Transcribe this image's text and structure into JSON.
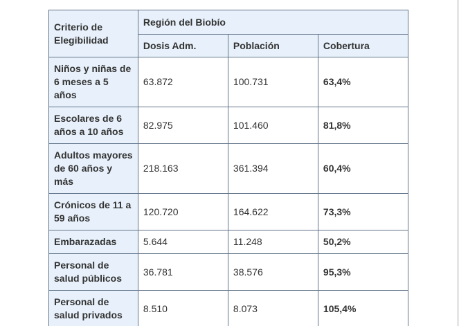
{
  "table": {
    "header": {
      "criterio": "Criterio de Elegibilidad",
      "region": "Región del Biobío",
      "dosis": "Dosis Adm.",
      "poblacion": "Población",
      "cobertura": "Cobertura"
    },
    "rows": [
      {
        "criterio": "Niños y niñas de 6 meses a 5 años",
        "dosis": "63.872",
        "poblacion": "100.731",
        "cobertura": "63,4%"
      },
      {
        "criterio": "Escolares de 6 años a 10 años",
        "dosis": "82.975",
        "poblacion": "101.460",
        "cobertura": "81,8%"
      },
      {
        "criterio": "Adultos mayores de 60 años y más",
        "dosis": "218.163",
        "poblacion": "361.394",
        "cobertura": "60,4%"
      },
      {
        "criterio": "Crónicos de 11 a 59 años",
        "dosis": "120.720",
        "poblacion": "164.622",
        "cobertura": "73,3%"
      },
      {
        "criterio": "Embarazadas",
        "dosis": "5.644",
        "poblacion": "11.248",
        "cobertura": "50,2%"
      },
      {
        "criterio": "Personal de salud públicos",
        "dosis": "36.781",
        "poblacion": "38.576",
        "cobertura": "95,3%"
      },
      {
        "criterio": "Personal de salud privados",
        "dosis": "8.510",
        "poblacion": "8.073",
        "cobertura": "105,4%"
      }
    ]
  }
}
